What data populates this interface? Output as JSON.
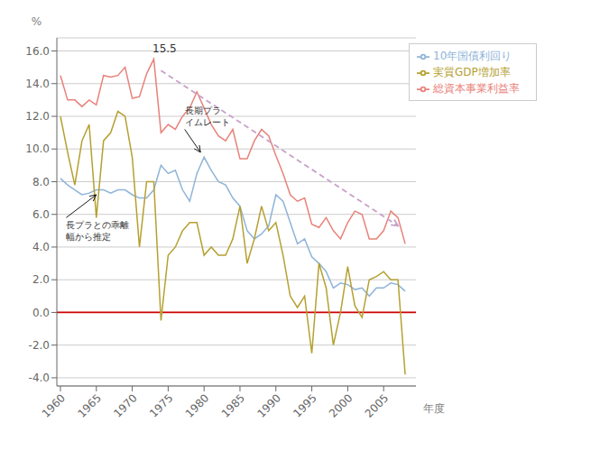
{
  "chart_data": {
    "type": "line",
    "x": [
      1960,
      1961,
      1962,
      1963,
      1964,
      1965,
      1966,
      1967,
      1968,
      1969,
      1970,
      1971,
      1972,
      1973,
      1974,
      1975,
      1976,
      1977,
      1978,
      1979,
      1980,
      1981,
      1982,
      1983,
      1984,
      1985,
      1986,
      1987,
      1988,
      1989,
      1990,
      1991,
      1992,
      1993,
      1994,
      1995,
      1996,
      1997,
      1998,
      1999,
      2000,
      2001,
      2002,
      2003,
      2004,
      2005,
      2006,
      2007,
      2008
    ],
    "series": [
      {
        "name": "総資本事業利益率",
        "color": "#E8827A",
        "values": [
          14.5,
          13.0,
          13.0,
          12.6,
          13.0,
          12.7,
          14.5,
          14.4,
          14.5,
          15.0,
          13.1,
          13.2,
          14.6,
          15.5,
          11.0,
          11.5,
          11.2,
          12.0,
          12.5,
          13.5,
          12.5,
          11.5,
          10.8,
          10.5,
          11.2,
          9.4,
          9.4,
          10.5,
          11.2,
          10.8,
          9.6,
          8.5,
          7.2,
          6.8,
          7.0,
          5.4,
          5.2,
          5.8,
          5.0,
          4.5,
          5.5,
          6.2,
          6.0,
          4.5,
          4.5,
          5.0,
          6.2,
          5.8,
          4.2
        ]
      },
      {
        "name": "10年国債利回り",
        "color": "#8EB4D8",
        "values": [
          8.2,
          7.8,
          7.5,
          7.2,
          7.3,
          7.5,
          7.5,
          7.3,
          7.5,
          7.5,
          7.2,
          7.0,
          7.0,
          7.5,
          9.0,
          8.5,
          8.7,
          7.5,
          6.8,
          8.5,
          9.5,
          8.7,
          8.0,
          7.8,
          7.0,
          6.5,
          5.0,
          4.5,
          4.8,
          5.3,
          7.2,
          6.8,
          5.5,
          4.2,
          4.5,
          3.4,
          3.0,
          2.5,
          1.5,
          1.8,
          1.7,
          1.4,
          1.5,
          1.0,
          1.5,
          1.5,
          1.8,
          1.7,
          1.3
        ]
      },
      {
        "name": "実質GDP増加率",
        "color": "#B5A030",
        "values": [
          12.0,
          9.8,
          7.8,
          10.5,
          11.5,
          5.8,
          10.5,
          11.0,
          12.3,
          12.0,
          9.5,
          4.0,
          8.0,
          8.0,
          -0.5,
          3.5,
          4.0,
          5.0,
          5.5,
          5.5,
          3.5,
          4.0,
          3.5,
          3.5,
          4.5,
          6.5,
          3.0,
          4.5,
          6.5,
          5.0,
          5.5,
          3.5,
          1.0,
          0.3,
          1.0,
          -2.5,
          3.0,
          1.5,
          -2.0,
          0.0,
          2.8,
          0.4,
          -0.3,
          2.0,
          2.2,
          2.5,
          2.0,
          2.0,
          -3.8
        ]
      }
    ],
    "trend_line": {
      "x": [
        1974,
        2007
      ],
      "values": [
        14.8,
        5.3
      ],
      "color": "#C8A0C8",
      "line_style": "dashed"
    },
    "reference_lines": [
      {
        "y": 0,
        "color": "#CC0000"
      }
    ],
    "annotations": [
      {
        "text": "15.5",
        "x": 1974.5,
        "y": 15.9
      },
      {
        "text": "長期プラ\nイムレート",
        "x": 1977.3,
        "y": 11.2,
        "arrow_x": 1979.5,
        "arrow_y": 9.8
      },
      {
        "text": "長プラとの乖離\n幅から推定",
        "x": 1960.8,
        "y": 5.8,
        "arrow_x": 1965.0,
        "arrow_y": 7.2
      }
    ],
    "xlabel": "年度",
    "ylabel": "%",
    "xlim": [
      1959.5,
      2009.5
    ],
    "xticks": [
      1960,
      1965,
      1970,
      1975,
      1980,
      1985,
      1990,
      1995,
      2000,
      2005
    ],
    "ylim": [
      -4.5,
      16.8
    ],
    "yticks": [
      {
        "value": -4.0,
        "label": "-4.0"
      },
      {
        "value": -2.0,
        "label": "-2.0"
      },
      {
        "value": 0.0,
        "label": "0.0"
      },
      {
        "value": 2.0,
        "label": "2.0"
      },
      {
        "value": 4.0,
        "label": "4.0"
      },
      {
        "value": 6.0,
        "label": "6.0"
      },
      {
        "value": 8.0,
        "label": "8.0"
      },
      {
        "value": 10.0,
        "label": "10.0"
      },
      {
        "value": 12.0,
        "label": "12.0"
      },
      {
        "value": 14.0,
        "label": "14.0"
      },
      {
        "value": 16.0,
        "label": "16.0"
      }
    ],
    "grid": "y",
    "legend": "upper right"
  }
}
